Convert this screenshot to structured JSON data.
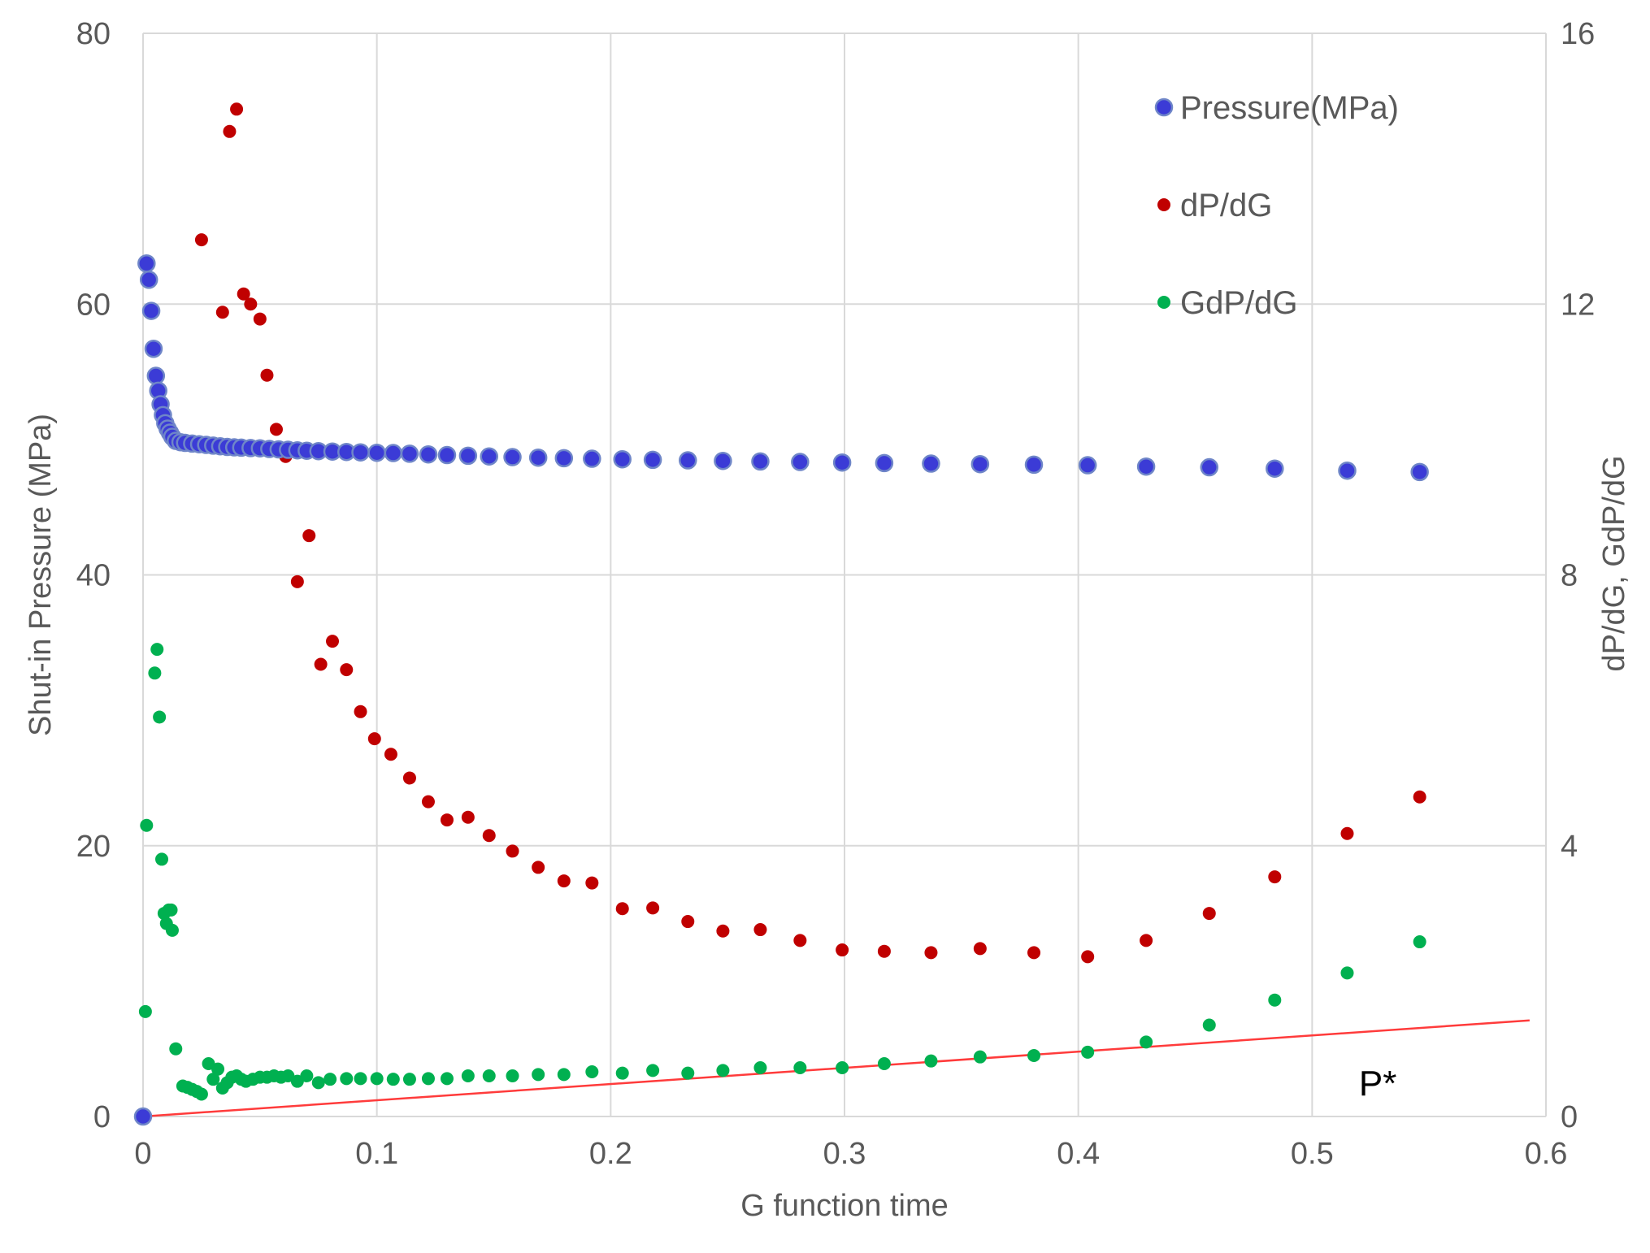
{
  "chart_data": {
    "type": "scatter",
    "xlabel": "G function time",
    "ylabel": "Shut-in Pressure (MPa)",
    "y2label": "dP/dG, GdP/dG",
    "xlim": [
      0,
      0.6
    ],
    "ylim": [
      0,
      80
    ],
    "y2lim": [
      0,
      16
    ],
    "x_ticks": [
      0,
      0.1,
      0.2,
      0.3,
      0.4,
      0.5,
      0.6
    ],
    "x_tick_labels": [
      "0",
      "0.1",
      "0.2",
      "0.3",
      "0.4",
      "0.5",
      "0.6"
    ],
    "y_ticks": [
      0,
      20,
      40,
      60,
      80
    ],
    "y_tick_labels": [
      "0",
      "20",
      "40",
      "60",
      "80"
    ],
    "y2_ticks": [
      0,
      4,
      8,
      12,
      16
    ],
    "y2_tick_labels": [
      "0",
      "4",
      "8",
      "12",
      "16"
    ],
    "grid": true,
    "legend_position": "top-right",
    "series": [
      {
        "name": "Pressure(MPa)",
        "axis": "left",
        "color": "#3b3bd6",
        "edge": "#6f86c8",
        "marker": "large",
        "x": [
          0.0,
          0.0015,
          0.0025,
          0.0035,
          0.0045,
          0.0055,
          0.0065,
          0.0075,
          0.0085,
          0.0095,
          0.0105,
          0.0115,
          0.0125,
          0.014,
          0.016,
          0.018,
          0.021,
          0.024,
          0.027,
          0.03,
          0.033,
          0.036,
          0.039,
          0.042,
          0.046,
          0.05,
          0.054,
          0.058,
          0.062,
          0.066,
          0.07,
          0.075,
          0.081,
          0.087,
          0.093,
          0.1,
          0.107,
          0.114,
          0.122,
          0.13,
          0.139,
          0.148,
          0.158,
          0.169,
          0.18,
          0.192,
          0.205,
          0.218,
          0.233,
          0.248,
          0.264,
          0.281,
          0.299,
          0.317,
          0.337,
          0.358,
          0.381,
          0.404,
          0.429,
          0.456,
          0.484,
          0.515,
          0.546
        ],
        "y": [
          0.0,
          63.0,
          61.8,
          59.5,
          56.7,
          54.7,
          53.6,
          52.6,
          51.8,
          51.2,
          50.8,
          50.5,
          50.2,
          49.9,
          49.8,
          49.75,
          49.7,
          49.65,
          49.6,
          49.55,
          49.5,
          49.45,
          49.42,
          49.4,
          49.37,
          49.35,
          49.3,
          49.27,
          49.24,
          49.2,
          49.17,
          49.14,
          49.11,
          49.08,
          49.05,
          49.02,
          49.0,
          48.95,
          48.9,
          48.85,
          48.8,
          48.75,
          48.7,
          48.66,
          48.62,
          48.58,
          48.54,
          48.5,
          48.46,
          48.42,
          48.38,
          48.34,
          48.3,
          48.26,
          48.22,
          48.18,
          48.14,
          48.1,
          48.0,
          47.95,
          47.85,
          47.7,
          47.6
        ]
      },
      {
        "name": "dP/dG",
        "axis": "right",
        "color": "#c00000",
        "marker": "small",
        "x": [
          0.0,
          0.025,
          0.034,
          0.037,
          0.04,
          0.043,
          0.046,
          0.05,
          0.053,
          0.057,
          0.061,
          0.066,
          0.071,
          0.076,
          0.081,
          0.087,
          0.093,
          0.099,
          0.106,
          0.114,
          0.122,
          0.13,
          0.139,
          0.148,
          0.158,
          0.169,
          0.18,
          0.192,
          0.205,
          0.218,
          0.233,
          0.248,
          0.264,
          0.281,
          0.299,
          0.317,
          0.337,
          0.358,
          0.381,
          0.404,
          0.429,
          0.456,
          0.484,
          0.515,
          0.546
        ],
        "y": [
          0.0,
          12.95,
          11.88,
          14.55,
          14.88,
          12.15,
          12.0,
          11.78,
          10.95,
          10.15,
          9.75,
          7.9,
          8.58,
          6.68,
          7.02,
          6.6,
          5.98,
          5.58,
          5.35,
          5.0,
          4.65,
          4.38,
          4.42,
          4.15,
          3.92,
          3.68,
          3.48,
          3.45,
          3.07,
          3.08,
          2.88,
          2.74,
          2.76,
          2.6,
          2.46,
          2.44,
          2.42,
          2.48,
          2.42,
          2.36,
          2.6,
          3.0,
          3.54,
          4.18,
          4.72
        ]
      },
      {
        "name": "GdP/dG",
        "axis": "right",
        "color": "#00b050",
        "marker": "small",
        "x": [
          0.0,
          0.001,
          0.0015,
          0.005,
          0.006,
          0.007,
          0.008,
          0.009,
          0.01,
          0.011,
          0.012,
          0.0125,
          0.014,
          0.017,
          0.019,
          0.021,
          0.023,
          0.025,
          0.028,
          0.03,
          0.032,
          0.034,
          0.036,
          0.038,
          0.04,
          0.042,
          0.044,
          0.047,
          0.05,
          0.053,
          0.056,
          0.059,
          0.062,
          0.066,
          0.07,
          0.075,
          0.08,
          0.087,
          0.093,
          0.1,
          0.107,
          0.114,
          0.122,
          0.13,
          0.139,
          0.148,
          0.158,
          0.169,
          0.18,
          0.192,
          0.205,
          0.218,
          0.233,
          0.248,
          0.264,
          0.281,
          0.299,
          0.317,
          0.337,
          0.358,
          0.381,
          0.404,
          0.429,
          0.456,
          0.484,
          0.515,
          0.546
        ],
        "y": [
          0.0,
          1.55,
          4.3,
          6.55,
          6.9,
          5.9,
          3.8,
          3.0,
          2.85,
          3.05,
          3.05,
          2.75,
          1.0,
          0.45,
          0.43,
          0.4,
          0.37,
          0.33,
          0.78,
          0.55,
          0.7,
          0.42,
          0.5,
          0.58,
          0.6,
          0.55,
          0.52,
          0.55,
          0.58,
          0.58,
          0.6,
          0.58,
          0.6,
          0.52,
          0.6,
          0.5,
          0.55,
          0.56,
          0.56,
          0.56,
          0.55,
          0.55,
          0.56,
          0.56,
          0.6,
          0.6,
          0.6,
          0.62,
          0.62,
          0.66,
          0.64,
          0.68,
          0.64,
          0.68,
          0.72,
          0.72,
          0.72,
          0.78,
          0.82,
          0.88,
          0.9,
          0.95,
          1.1,
          1.35,
          1.72,
          2.12,
          2.58
        ]
      }
    ],
    "trend_line": {
      "name": "P*",
      "axis": "right",
      "color": "#ff3b3b",
      "x": [
        0.0,
        0.593
      ],
      "y": [
        0.0,
        1.42
      ]
    },
    "annotations": [
      {
        "text": "P*",
        "x": 0.52,
        "y2": 0.6
      }
    ]
  }
}
